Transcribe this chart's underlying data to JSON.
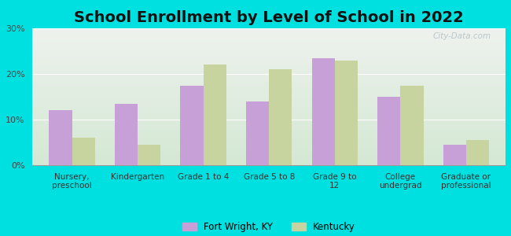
{
  "title": "School Enrollment by Level of School in 2022",
  "categories": [
    "Nursery,\npreschool",
    "Kindergarten",
    "Grade 1 to 4",
    "Grade 5 to 8",
    "Grade 9 to\n12",
    "College\nundergrad",
    "Graduate or\nprofessional"
  ],
  "fort_wright": [
    12.0,
    13.5,
    17.5,
    14.0,
    23.5,
    15.0,
    4.5
  ],
  "kentucky": [
    6.0,
    4.5,
    22.0,
    21.0,
    23.0,
    17.5,
    5.5
  ],
  "fort_wright_color": "#c8a0d8",
  "kentucky_color": "#c8d4a0",
  "background_outer": "#00e0e0",
  "background_inner_top": "#eef2ee",
  "background_inner_bottom": "#d4e8d4",
  "ylim": [
    0,
    30
  ],
  "yticks": [
    0,
    10,
    20,
    30
  ],
  "ytick_labels": [
    "0%",
    "10%",
    "20%",
    "30%"
  ],
  "title_fontsize": 14,
  "legend_label_fw": "Fort Wright, KY",
  "legend_label_ky": "Kentucky",
  "bar_width": 0.35,
  "watermark_text": "City-Data.com"
}
